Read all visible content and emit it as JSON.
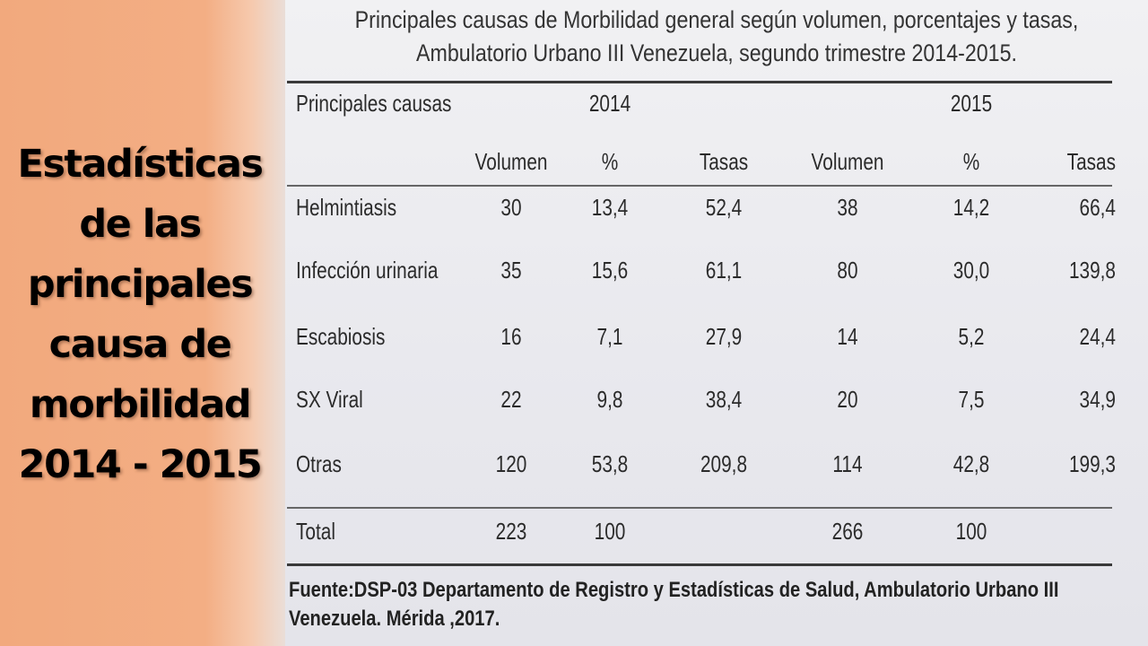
{
  "side_title": {
    "lines": [
      "Estadísticas",
      "de las",
      "principales",
      "causa de",
      "morbilidad",
      "2014 - 2015"
    ]
  },
  "table_title": {
    "lines": [
      "Principales causas de Morbilidad general según volumen, porcentajes y tasas,",
      "Ambulatorio Urbano III Venezuela, segundo trimestre 2014-2015."
    ]
  },
  "table": {
    "header_cause": "Principales  causas",
    "years": [
      "2014",
      "2015"
    ],
    "subheaders": [
      "Volumen",
      "%",
      "Tasas",
      "Volumen",
      "%",
      "Tasas"
    ],
    "rows": [
      {
        "cause": "Helmintiasis",
        "values": [
          "30",
          "13,4",
          "52,4",
          "38",
          "14,2",
          "66,4"
        ]
      },
      {
        "cause": "Infección urinaria",
        "values": [
          "35",
          "15,6",
          "61,1",
          "80",
          "30,0",
          "139,8"
        ]
      },
      {
        "cause": "Escabiosis",
        "values": [
          "16",
          "7,1",
          "27,9",
          "14",
          "5,2",
          "24,4"
        ]
      },
      {
        "cause": "SX Viral",
        "values": [
          "22",
          "9,8",
          "38,4",
          "20",
          "7,5",
          "34,9"
        ]
      },
      {
        "cause": "Otras",
        "values": [
          "120",
          "53,8",
          "209,8",
          "114",
          "42,8",
          "199,3"
        ]
      }
    ],
    "total": {
      "cause": "Total",
      "values": [
        "223",
        "100",
        "",
        "266",
        "100",
        ""
      ]
    }
  },
  "source": {
    "lines": [
      "Fuente:DSP-03 Departamento de Registro y Estadísticas de Salud, Ambulatorio Urbano III",
      "Venezuela. Mérida ,2017."
    ]
  }
}
